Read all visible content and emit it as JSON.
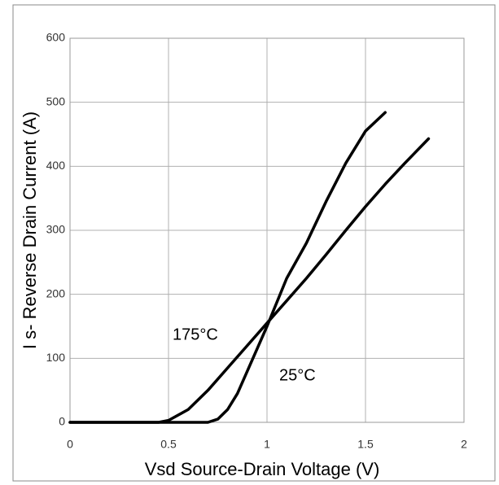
{
  "chart_data": {
    "type": "line",
    "x_label": "Vsd Source-Drain Voltage (V)",
    "y_label": "I s- Reverse Drain Current (A)",
    "xlim": [
      0,
      2
    ],
    "xticks": [
      0,
      0.5,
      1,
      1.5,
      2
    ],
    "ylim": [
      0,
      600
    ],
    "yticks": [
      0,
      100,
      200,
      300,
      400,
      500,
      600
    ],
    "grid": true,
    "annotations": [
      "175°C",
      "25°C"
    ],
    "series": [
      {
        "name": "25°C",
        "color": "#000000",
        "x": [
          0,
          0.7,
          0.75,
          0.8,
          0.85,
          0.9,
          0.95,
          1.0,
          1.1,
          1.2,
          1.3,
          1.4,
          1.5,
          1.6
        ],
        "values": [
          0,
          0,
          5,
          20,
          45,
          80,
          115,
          150,
          225,
          280,
          345,
          405,
          455,
          484
        ]
      },
      {
        "name": "175°C",
        "color": "#000000",
        "x": [
          0,
          0.45,
          0.5,
          0.6,
          0.7,
          0.8,
          0.9,
          1.0,
          1.1,
          1.2,
          1.3,
          1.4,
          1.5,
          1.6,
          1.7,
          1.82
        ],
        "values": [
          0,
          0,
          3,
          20,
          50,
          85,
          120,
          155,
          190,
          225,
          262,
          300,
          337,
          372,
          405,
          443
        ]
      }
    ]
  }
}
